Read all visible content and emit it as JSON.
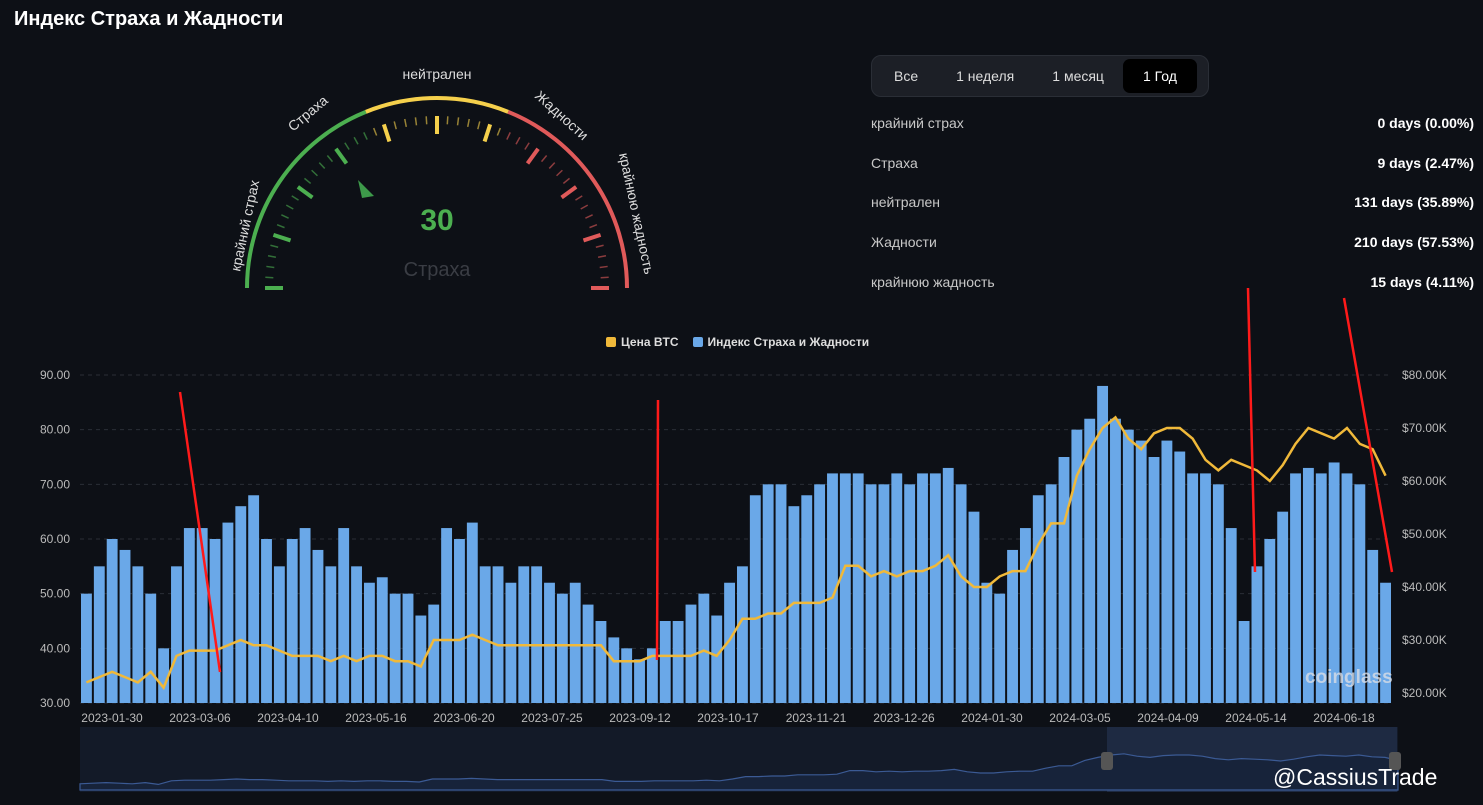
{
  "title": "Индекс Страха и Жадности",
  "gauge": {
    "value": "30",
    "label": "Страха",
    "zones": [
      "крайний страх",
      "Страха",
      "нейтрален",
      "Жадности",
      "крайнюю жадность"
    ]
  },
  "tabs": [
    {
      "label": "Все"
    },
    {
      "label": "1 неделя"
    },
    {
      "label": "1 месяц"
    },
    {
      "label": "1 Год",
      "active": true
    }
  ],
  "stats": [
    {
      "label": "крайний страх",
      "value": "0 days (0.00%)"
    },
    {
      "label": "Страха",
      "value": "9 days (2.47%)"
    },
    {
      "label": "нейтрален",
      "value": "131 days (35.89%)"
    },
    {
      "label": "Жадности",
      "value": "210 days (57.53%)"
    },
    {
      "label": "крайнюю жадность",
      "value": "15 days (4.11%)"
    }
  ],
  "colors": {
    "fear": "#4caf50",
    "neutral": "#f5d04c",
    "greed": "#e05a5a",
    "bar": "#6aa8e8",
    "price": "#f0b93a"
  },
  "chart_data": {
    "type": "bar+line",
    "legend": [
      "Цена BTC",
      "Индекс Страха и Жадности"
    ],
    "left_ticks": [
      "90.00",
      "80.00",
      "70.00",
      "60.00",
      "50.00",
      "40.00",
      "30.00"
    ],
    "left_range": [
      30,
      90
    ],
    "right_ticks": [
      "$80.00K",
      "$70.00K",
      "$60.00K",
      "$50.00K",
      "$40.00K",
      "$30.00K",
      "$20.00K"
    ],
    "right_range": [
      20,
      80
    ],
    "x_ticks": [
      "2023-01-30",
      "2023-03-06",
      "2023-04-10",
      "2023-05-16",
      "2023-06-20",
      "2023-07-25",
      "2023-09-12",
      "2023-10-17",
      "2023-11-21",
      "2023-12-26",
      "2024-01-30",
      "2024-03-05",
      "2024-04-09",
      "2024-05-14",
      "2024-06-18"
    ],
    "index": [
      50,
      55,
      60,
      58,
      55,
      50,
      40,
      55,
      62,
      62,
      60,
      63,
      66,
      68,
      60,
      55,
      60,
      62,
      58,
      55,
      62,
      55,
      52,
      53,
      50,
      50,
      46,
      48,
      62,
      60,
      63,
      55,
      55,
      52,
      55,
      55,
      52,
      50,
      52,
      48,
      45,
      42,
      40,
      38,
      40,
      45,
      45,
      48,
      50,
      46,
      52,
      55,
      68,
      70,
      70,
      66,
      68,
      70,
      72,
      72,
      72,
      70,
      70,
      72,
      70,
      72,
      72,
      73,
      70,
      65,
      52,
      50,
      58,
      62,
      68,
      70,
      75,
      80,
      82,
      88,
      82,
      80,
      78,
      75,
      78,
      76,
      72,
      72,
      70,
      62,
      45,
      55,
      60,
      65,
      72,
      73,
      72,
      74,
      72,
      70,
      58,
      52
    ],
    "price_k": [
      22,
      23,
      24,
      23,
      22,
      24,
      21,
      27,
      28,
      28,
      28,
      29,
      30,
      29,
      29,
      28,
      27,
      27,
      27,
      26,
      27,
      26,
      27,
      27,
      26,
      26,
      25,
      30,
      30,
      30,
      31,
      30,
      29,
      29,
      29,
      29,
      29,
      29,
      29,
      29,
      29,
      26,
      26,
      26,
      27,
      27,
      27,
      27,
      28,
      27,
      30,
      34,
      34,
      35,
      35,
      37,
      37,
      37,
      38,
      44,
      44,
      42,
      43,
      42,
      43,
      43,
      44,
      46,
      42,
      40,
      40,
      42,
      43,
      43,
      48,
      52,
      52,
      61,
      66,
      70,
      72,
      68,
      66,
      69,
      70,
      70,
      68,
      64,
      62,
      64,
      63,
      62,
      60,
      63,
      67,
      70,
      69,
      68,
      70,
      67,
      66,
      61
    ]
  },
  "brand": "coinglass",
  "watermark": "@CassiusTrade"
}
